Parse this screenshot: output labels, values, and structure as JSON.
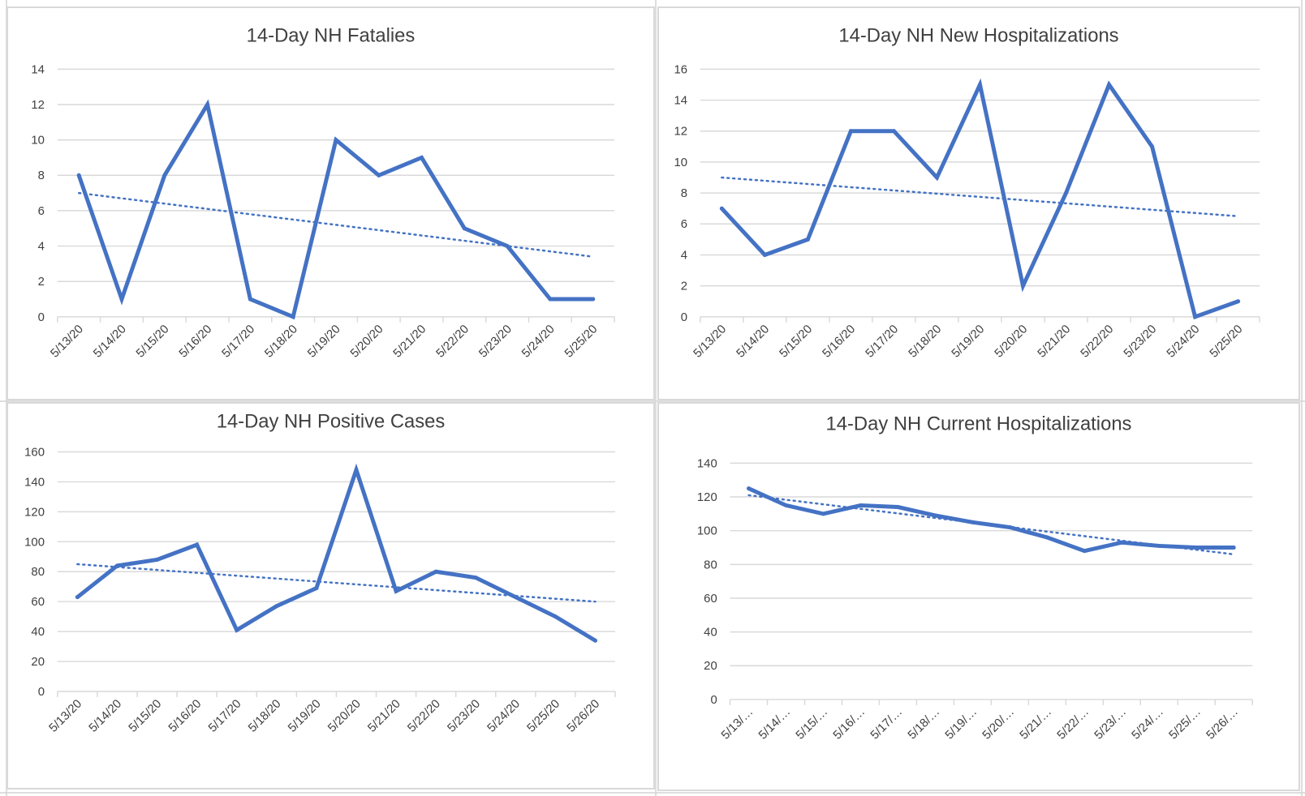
{
  "colors": {
    "series": "#4472C4",
    "grid": "#D9D9D9",
    "text": "#404040"
  },
  "chart_data": [
    {
      "type": "line",
      "title": "14-Day NH Fatalies",
      "xlabel": "",
      "ylabel": "",
      "categories": [
        "5/13/20",
        "5/14/20",
        "5/15/20",
        "5/16/20",
        "5/17/20",
        "5/18/20",
        "5/19/20",
        "5/20/20",
        "5/21/20",
        "5/22/20",
        "5/23/20",
        "5/24/20",
        "5/25/20"
      ],
      "series": [
        {
          "name": "Fatalities",
          "values": [
            8,
            1,
            8,
            12,
            1,
            0,
            10,
            8,
            9,
            5,
            4,
            1,
            1
          ]
        }
      ],
      "trendline": {
        "type": "linear",
        "style": "dotted",
        "start": 7.0,
        "end": 3.4
      },
      "ylim": [
        0,
        14
      ],
      "yticks": [
        0,
        2,
        4,
        6,
        8,
        10,
        12,
        14
      ],
      "grid": true,
      "legend": "none"
    },
    {
      "type": "line",
      "title": "14-Day NH New Hospitalizations",
      "xlabel": "",
      "ylabel": "",
      "categories": [
        "5/13/20",
        "5/14/20",
        "5/15/20",
        "5/16/20",
        "5/17/20",
        "5/18/20",
        "5/19/20",
        "5/20/20",
        "5/21/20",
        "5/22/20",
        "5/23/20",
        "5/24/20",
        "5/25/20"
      ],
      "series": [
        {
          "name": "New Hospitalizations",
          "values": [
            7,
            4,
            5,
            12,
            12,
            9,
            15,
            2,
            8,
            15,
            11,
            0,
            1
          ]
        }
      ],
      "trendline": {
        "type": "linear",
        "style": "dotted",
        "start": 9.0,
        "end": 6.5
      },
      "ylim": [
        0,
        16
      ],
      "yticks": [
        0,
        2,
        4,
        6,
        8,
        10,
        12,
        14,
        16
      ],
      "grid": true,
      "legend": "none"
    },
    {
      "type": "line",
      "title": "14-Day NH Positive Cases",
      "xlabel": "",
      "ylabel": "",
      "categories": [
        "5/13/20",
        "5/14/20",
        "5/15/20",
        "5/16/20",
        "5/17/20",
        "5/18/20",
        "5/19/20",
        "5/20/20",
        "5/21/20",
        "5/22/20",
        "5/23/20",
        "5/24/20",
        "5/25/20",
        "5/26/20"
      ],
      "series": [
        {
          "name": "Positive Cases",
          "values": [
            63,
            84,
            88,
            98,
            41,
            57,
            69,
            148,
            67,
            80,
            76,
            63,
            50,
            34
          ]
        }
      ],
      "trendline": {
        "type": "linear",
        "style": "dotted",
        "start": 85,
        "end": 60
      },
      "ylim": [
        0,
        160
      ],
      "yticks": [
        0,
        20,
        40,
        60,
        80,
        100,
        120,
        140,
        160
      ],
      "grid": true,
      "legend": "none"
    },
    {
      "type": "line",
      "title": "14-Day NH Current Hospitalizations",
      "xlabel": "",
      "ylabel": "",
      "categories": [
        "5/13/…",
        "5/14/…",
        "5/15/…",
        "5/16/…",
        "5/17/…",
        "5/18/…",
        "5/19/…",
        "5/20/…",
        "5/21/…",
        "5/22/…",
        "5/23/…",
        "5/24/…",
        "5/25/…",
        "5/26/…"
      ],
      "series": [
        {
          "name": "Current Hospitalizations",
          "values": [
            125,
            115,
            110,
            115,
            114,
            109,
            105,
            102,
            96,
            88,
            93,
            91,
            90,
            90
          ]
        }
      ],
      "trendline": {
        "type": "linear",
        "style": "dotted",
        "start": 121,
        "end": 86
      },
      "ylim": [
        0,
        140
      ],
      "yticks": [
        0,
        20,
        40,
        60,
        80,
        100,
        120,
        140
      ],
      "grid": true,
      "legend": "none"
    }
  ]
}
